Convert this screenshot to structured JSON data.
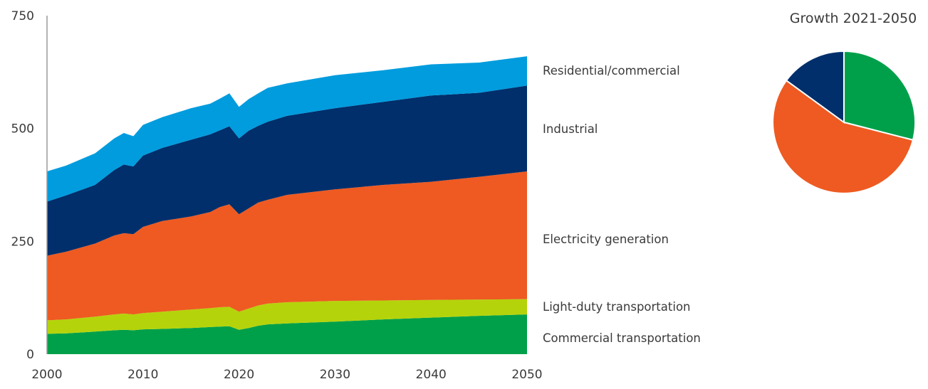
{
  "chart_data": [
    {
      "type": "area",
      "stacked": true,
      "title": "",
      "xlabel": "",
      "ylabel": "",
      "xlim": [
        2000,
        2050
      ],
      "ylim": [
        0,
        750
      ],
      "x_ticks": [
        2000,
        2010,
        2020,
        2030,
        2040,
        2050
      ],
      "y_ticks": [
        0,
        250,
        500,
        750
      ],
      "grid": false,
      "legend": "inline-right",
      "x": [
        2000,
        2002,
        2005,
        2007,
        2008,
        2009,
        2010,
        2012,
        2015,
        2017,
        2018,
        2019,
        2020,
        2021,
        2022,
        2023,
        2025,
        2030,
        2035,
        2040,
        2045,
        2050
      ],
      "series": [
        {
          "name": "Commercial transportation",
          "color": "#00A04A",
          "values": [
            45,
            46,
            50,
            53,
            54,
            53,
            55,
            56,
            58,
            60,
            61,
            62,
            54,
            58,
            63,
            66,
            68,
            72,
            77,
            81,
            85,
            88
          ]
        },
        {
          "name": "Light-duty transportation",
          "color": "#B5D30B",
          "values": [
            30,
            31,
            33,
            35,
            36,
            35,
            36,
            38,
            41,
            42,
            43,
            43,
            40,
            43,
            45,
            46,
            47,
            46,
            42,
            39,
            36,
            34
          ]
        },
        {
          "name": "Electricity generation",
          "color": "#EE5A21",
          "values": [
            143,
            150,
            162,
            175,
            178,
            178,
            191,
            201,
            206,
            213,
            222,
            227,
            216,
            222,
            228,
            230,
            238,
            247,
            256,
            262,
            272,
            283
          ]
        },
        {
          "name": "Industrial",
          "color": "#002F6C",
          "values": [
            120,
            125,
            130,
            145,
            152,
            150,
            158,
            162,
            170,
            172,
            170,
            173,
            168,
            172,
            170,
            173,
            175,
            180,
            184,
            191,
            186,
            190
          ]
        },
        {
          "name": "Residential/commercial",
          "color": "#009CDE",
          "values": [
            67,
            66,
            70,
            70,
            70,
            67,
            68,
            68,
            70,
            68,
            70,
            73,
            70,
            70,
            72,
            75,
            72,
            73,
            70,
            69,
            67,
            65
          ]
        }
      ]
    },
    {
      "type": "pie",
      "title": "Growth 2021-2050",
      "slices": [
        {
          "name": "Commercial transportation",
          "color": "#00A04A",
          "value": 29
        },
        {
          "name": "Electricity generation",
          "color": "#EE5A21",
          "value": 56
        },
        {
          "name": "Industrial",
          "color": "#002F6C",
          "value": 15
        }
      ]
    }
  ]
}
